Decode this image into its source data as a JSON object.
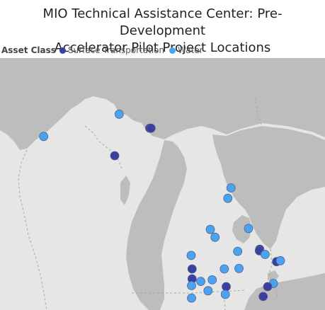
{
  "title_line1": "MIO Technical Assistance Center: Pre-Development",
  "title_line2": "Accelerator Pilot Project Locations",
  "legend": {
    "title": "Asset Class",
    "items": [
      {
        "label": "Surface Transportation",
        "color": "#3a3fa0"
      },
      {
        "label": "Water",
        "color": "#4aa3f0"
      }
    ]
  },
  "colors": {
    "water_body": "#bdbdbd",
    "land": "#e6e6e6",
    "border": "#a8a8a8"
  },
  "markers": [
    {
      "type": "Water",
      "lat": 47.32,
      "lon": -88.46
    },
    {
      "type": "Water",
      "lat": 46.89,
      "lon": -90.83
    },
    {
      "type": "Surface Transportation",
      "lat": 47.05,
      "lon": -87.5
    },
    {
      "type": "Surface Transportation",
      "lat": 47.05,
      "lon": -87.46
    },
    {
      "type": "Surface Transportation",
      "lat": 46.52,
      "lon": -88.6
    },
    {
      "type": "Water",
      "lat": 45.9,
      "lon": -84.95
    },
    {
      "type": "Water",
      "lat": 45.7,
      "lon": -85.05
    },
    {
      "type": "Water",
      "lat": 45.1,
      "lon": -85.6
    },
    {
      "type": "Water",
      "lat": 45.12,
      "lon": -84.4
    },
    {
      "type": "Water",
      "lat": 44.95,
      "lon": -85.45
    },
    {
      "type": "Water",
      "lat": 44.68,
      "lon": -84.74
    },
    {
      "type": "Surface Transportation",
      "lat": 44.72,
      "lon": -84.05
    },
    {
      "type": "Surface Transportation",
      "lat": 44.69,
      "lon": -84.06
    },
    {
      "type": "Water",
      "lat": 44.62,
      "lon": -83.88
    },
    {
      "type": "Water",
      "lat": 44.6,
      "lon": -86.2
    },
    {
      "type": "Surface Transportation",
      "lat": 44.48,
      "lon": -83.52
    },
    {
      "type": "Water",
      "lat": 44.5,
      "lon": -83.4
    },
    {
      "type": "Surface Transportation",
      "lat": 44.34,
      "lon": -86.17
    },
    {
      "type": "Water",
      "lat": 44.34,
      "lon": -85.16
    },
    {
      "type": "Water",
      "lat": 44.35,
      "lon": -84.7
    },
    {
      "type": "Surface Transportation",
      "lat": 44.15,
      "lon": -86.17
    },
    {
      "type": "Water",
      "lat": 44.1,
      "lon": -85.9
    },
    {
      "type": "Water",
      "lat": 44.13,
      "lon": -85.54
    },
    {
      "type": "Water",
      "lat": 44.02,
      "lon": -86.19
    },
    {
      "type": "Surface Transportation",
      "lat": 44.0,
      "lon": -85.1
    },
    {
      "type": "Water",
      "lat": 44.06,
      "lon": -83.62
    },
    {
      "type": "Surface Transportation",
      "lat": 44.0,
      "lon": -83.8
    },
    {
      "type": "Water",
      "lat": 43.92,
      "lon": -85.67
    },
    {
      "type": "Water",
      "lat": 43.85,
      "lon": -85.13
    },
    {
      "type": "Water",
      "lat": 43.78,
      "lon": -86.19
    },
    {
      "type": "Surface Transportation",
      "lat": 43.81,
      "lon": -83.94
    }
  ]
}
